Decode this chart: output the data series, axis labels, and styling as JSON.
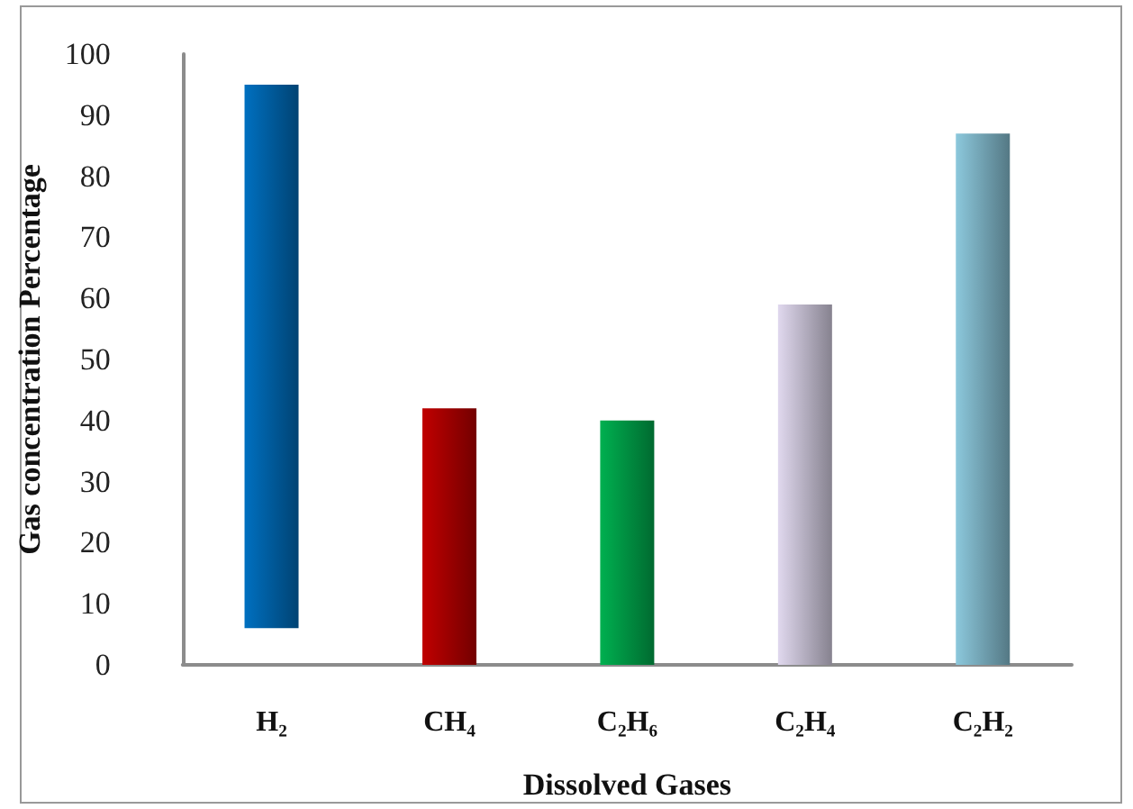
{
  "chart_data": {
    "type": "bar",
    "xlabel": "Dissolved Gases",
    "ylabel": "Gas concentration Percentage",
    "categories": [
      "H₂",
      "CH₄",
      "C₂H₆",
      "C₂H₄",
      "C₂H₂"
    ],
    "values": [
      89,
      42,
      40,
      59,
      87
    ],
    "base": [
      6,
      0,
      0,
      0,
      0
    ],
    "colors": [
      "#0070c0",
      "#c00000",
      "#00b050",
      "#e0d8ee",
      "#8cc8dc"
    ],
    "ylim": [
      0,
      100
    ],
    "yticks": [
      0,
      10,
      20,
      30,
      40,
      50,
      60,
      70,
      80,
      90,
      100
    ],
    "grid": false
  }
}
